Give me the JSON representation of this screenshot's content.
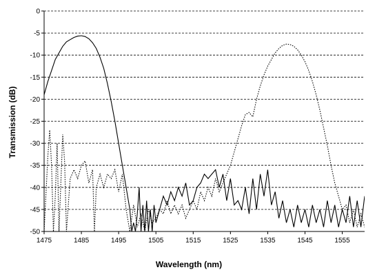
{
  "chart_data": {
    "type": "line",
    "title": "",
    "xlabel": "Wavelength (nm)",
    "ylabel": "Transmission (dB)",
    "xlim": [
      1475,
      1561
    ],
    "ylim": [
      -50,
      0
    ],
    "x_ticks": [
      1475,
      1485,
      1495,
      1505,
      1515,
      1525,
      1535,
      1545,
      1555
    ],
    "y_ticks": [
      0,
      -5,
      -10,
      -15,
      -20,
      -25,
      -30,
      -35,
      -40,
      -45,
      -50
    ],
    "grid": "horizontal dashed",
    "legend": "none",
    "series": [
      {
        "style": "solid",
        "color": "#000000",
        "points": [
          [
            1475,
            -19
          ],
          [
            1476,
            -16
          ],
          [
            1477,
            -13.5
          ],
          [
            1478,
            -11
          ],
          [
            1479,
            -9.5
          ],
          [
            1480,
            -8
          ],
          [
            1481,
            -7
          ],
          [
            1482,
            -6.5
          ],
          [
            1483,
            -6
          ],
          [
            1484,
            -5.7
          ],
          [
            1485,
            -5.6
          ],
          [
            1486,
            -5.8
          ],
          [
            1487,
            -6.3
          ],
          [
            1488,
            -7.2
          ],
          [
            1489,
            -8.5
          ],
          [
            1490,
            -10.5
          ],
          [
            1491,
            -13
          ],
          [
            1492,
            -16.5
          ],
          [
            1493,
            -20.5
          ],
          [
            1494,
            -25
          ],
          [
            1495,
            -30
          ],
          [
            1496,
            -35
          ],
          [
            1497,
            -40
          ],
          [
            1498,
            -45
          ],
          [
            1498.5,
            -50
          ],
          [
            1499,
            -48
          ],
          [
            1499.5,
            -50
          ],
          [
            1500,
            -46
          ],
          [
            1500.5,
            -40
          ],
          [
            1501,
            -50
          ],
          [
            1501.5,
            -44
          ],
          [
            1502,
            -50
          ],
          [
            1502.5,
            -43
          ],
          [
            1503,
            -50
          ],
          [
            1503.5,
            -45
          ],
          [
            1504,
            -50
          ],
          [
            1504.5,
            -44
          ],
          [
            1505,
            -48
          ],
          [
            1506,
            -45
          ],
          [
            1507,
            -42
          ],
          [
            1508,
            -44
          ],
          [
            1509,
            -41
          ],
          [
            1510,
            -43
          ],
          [
            1511,
            -40
          ],
          [
            1512,
            -42
          ],
          [
            1513,
            -39
          ],
          [
            1514,
            -44
          ],
          [
            1515,
            -43
          ],
          [
            1516,
            -40
          ],
          [
            1517,
            -39
          ],
          [
            1518,
            -37
          ],
          [
            1519,
            -38
          ],
          [
            1520,
            -37
          ],
          [
            1521,
            -36
          ],
          [
            1522,
            -40
          ],
          [
            1523,
            -37
          ],
          [
            1524,
            -43
          ],
          [
            1525,
            -38
          ],
          [
            1526,
            -44
          ],
          [
            1527,
            -43
          ],
          [
            1528,
            -45
          ],
          [
            1529,
            -40
          ],
          [
            1530,
            -46
          ],
          [
            1531,
            -38
          ],
          [
            1532,
            -45
          ],
          [
            1533,
            -37
          ],
          [
            1534,
            -42
          ],
          [
            1535,
            -36
          ],
          [
            1536,
            -44
          ],
          [
            1537,
            -41
          ],
          [
            1538,
            -47
          ],
          [
            1539,
            -43
          ],
          [
            1540,
            -48
          ],
          [
            1541,
            -45
          ],
          [
            1542,
            -49
          ],
          [
            1543,
            -44
          ],
          [
            1544,
            -48
          ],
          [
            1545,
            -45
          ],
          [
            1546,
            -49
          ],
          [
            1547,
            -44
          ],
          [
            1548,
            -48
          ],
          [
            1549,
            -45
          ],
          [
            1550,
            -49
          ],
          [
            1551,
            -43
          ],
          [
            1552,
            -48
          ],
          [
            1553,
            -44
          ],
          [
            1554,
            -49
          ],
          [
            1555,
            -45
          ],
          [
            1556,
            -48
          ],
          [
            1557,
            -42
          ],
          [
            1558,
            -49
          ],
          [
            1559,
            -43
          ],
          [
            1560,
            -49
          ],
          [
            1561,
            -42
          ]
        ]
      },
      {
        "style": "dotted",
        "color": "#000000",
        "points": [
          [
            1475,
            -50
          ],
          [
            1476,
            -33
          ],
          [
            1476.5,
            -27
          ],
          [
            1477,
            -35
          ],
          [
            1477.5,
            -50
          ],
          [
            1478,
            -42
          ],
          [
            1478.5,
            -30
          ],
          [
            1479,
            -50
          ],
          [
            1480,
            -28
          ],
          [
            1480.5,
            -34
          ],
          [
            1481,
            -50
          ],
          [
            1482,
            -38
          ],
          [
            1483,
            -36
          ],
          [
            1484,
            -38
          ],
          [
            1485,
            -35
          ],
          [
            1486,
            -34
          ],
          [
            1487,
            -39
          ],
          [
            1488,
            -36
          ],
          [
            1488.5,
            -50
          ],
          [
            1489,
            -40
          ],
          [
            1490,
            -37
          ],
          [
            1491,
            -40
          ],
          [
            1492,
            -37
          ],
          [
            1493,
            -38
          ],
          [
            1494,
            -36
          ],
          [
            1495,
            -41
          ],
          [
            1496,
            -37
          ],
          [
            1497,
            -45
          ],
          [
            1498,
            -50
          ],
          [
            1499,
            -44
          ],
          [
            1500,
            -49
          ],
          [
            1501,
            -46
          ],
          [
            1502,
            -50
          ],
          [
            1503,
            -45
          ],
          [
            1504,
            -48
          ],
          [
            1505,
            -47
          ],
          [
            1506,
            -45
          ],
          [
            1507,
            -46
          ],
          [
            1508,
            -43
          ],
          [
            1509,
            -46
          ],
          [
            1510,
            -44
          ],
          [
            1511,
            -46
          ],
          [
            1512,
            -44
          ],
          [
            1513,
            -47
          ],
          [
            1514,
            -45
          ],
          [
            1515,
            -43
          ],
          [
            1516,
            -45
          ],
          [
            1517,
            -41
          ],
          [
            1518,
            -43
          ],
          [
            1519,
            -40
          ],
          [
            1520,
            -42
          ],
          [
            1521,
            -38
          ],
          [
            1522,
            -41
          ],
          [
            1523,
            -39
          ],
          [
            1524,
            -37
          ],
          [
            1525,
            -35
          ],
          [
            1526,
            -32
          ],
          [
            1527,
            -29
          ],
          [
            1528,
            -26
          ],
          [
            1529,
            -23.5
          ],
          [
            1530,
            -23
          ],
          [
            1531,
            -24
          ],
          [
            1532,
            -20
          ],
          [
            1533,
            -17
          ],
          [
            1534,
            -14.5
          ],
          [
            1535,
            -12.5
          ],
          [
            1536,
            -11
          ],
          [
            1537,
            -9.5
          ],
          [
            1538,
            -8.5
          ],
          [
            1539,
            -7.8
          ],
          [
            1540,
            -7.5
          ],
          [
            1541,
            -7.6
          ],
          [
            1542,
            -8
          ],
          [
            1543,
            -8.8
          ],
          [
            1544,
            -10
          ],
          [
            1545,
            -11.5
          ],
          [
            1546,
            -13.5
          ],
          [
            1547,
            -16
          ],
          [
            1548,
            -19
          ],
          [
            1549,
            -22.5
          ],
          [
            1550,
            -26.5
          ],
          [
            1551,
            -30.5
          ],
          [
            1552,
            -35
          ],
          [
            1553,
            -39
          ],
          [
            1554,
            -42
          ],
          [
            1555,
            -45
          ],
          [
            1556,
            -44
          ],
          [
            1557,
            -48
          ],
          [
            1558,
            -45
          ],
          [
            1559,
            -49
          ],
          [
            1560,
            -46
          ],
          [
            1561,
            -49
          ]
        ]
      }
    ]
  }
}
